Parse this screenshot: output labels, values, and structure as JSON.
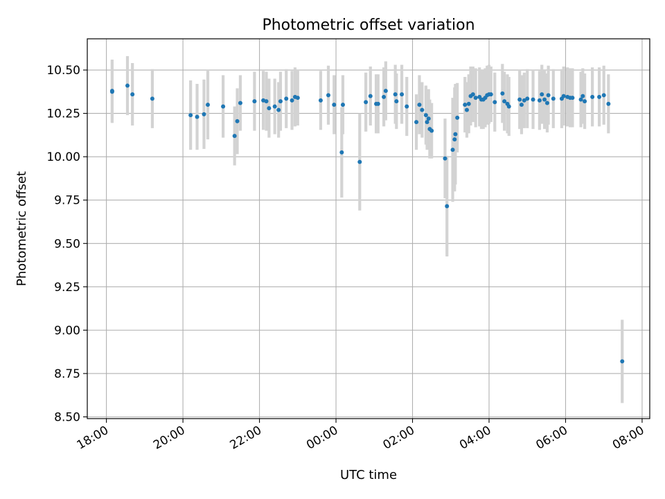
{
  "chart_data": {
    "type": "scatter",
    "title": "Photometric offset variation",
    "xlabel": "UTC time",
    "ylabel": "Photometric offset",
    "xlim_hours": [
      17.5,
      32.2
    ],
    "ylim": [
      8.49,
      10.68
    ],
    "x_ticks": [
      {
        "hour": 18,
        "label": "18:00"
      },
      {
        "hour": 20,
        "label": "20:00"
      },
      {
        "hour": 22,
        "label": "22:00"
      },
      {
        "hour": 24,
        "label": "00:00"
      },
      {
        "hour": 26,
        "label": "02:00"
      },
      {
        "hour": 28,
        "label": "04:00"
      },
      {
        "hour": 30,
        "label": "06:00"
      },
      {
        "hour": 32,
        "label": "08:00"
      }
    ],
    "y_ticks": [
      {
        "value": 8.5,
        "label": "8.50"
      },
      {
        "value": 8.75,
        "label": "8.75"
      },
      {
        "value": 9.0,
        "label": "9.00"
      },
      {
        "value": 9.25,
        "label": "9.25"
      },
      {
        "value": 9.5,
        "label": "9.50"
      },
      {
        "value": 9.75,
        "label": "9.75"
      },
      {
        "value": 10.0,
        "label": "10.00"
      },
      {
        "value": 10.25,
        "label": "10.25"
      },
      {
        "value": 10.5,
        "label": "10.50"
      }
    ],
    "grid": true,
    "colors": {
      "point": "#1f77b4",
      "errorbar": "#d3d3d3",
      "grid": "#b0b0b0"
    },
    "series": [
      {
        "points": [
          [
            18.15,
            10.375,
            0.18
          ],
          [
            18.15,
            10.38,
            0.18
          ],
          [
            18.55,
            10.41,
            0.17
          ],
          [
            18.68,
            10.36,
            0.18
          ],
          [
            19.2,
            10.335,
            0.17
          ],
          [
            20.2,
            10.24,
            0.2
          ],
          [
            20.37,
            10.23,
            0.19
          ],
          [
            20.55,
            10.245,
            0.2
          ],
          [
            20.65,
            10.3,
            0.2
          ],
          [
            21.05,
            10.29,
            0.18
          ],
          [
            21.35,
            10.12,
            0.17
          ],
          [
            21.42,
            10.205,
            0.19
          ],
          [
            21.5,
            10.31,
            0.16
          ],
          [
            21.87,
            10.32,
            0.17
          ],
          [
            22.1,
            10.325,
            0.17
          ],
          [
            22.18,
            10.32,
            0.17
          ],
          [
            22.25,
            10.28,
            0.17
          ],
          [
            22.4,
            10.29,
            0.16
          ],
          [
            22.5,
            10.27,
            0.16
          ],
          [
            22.55,
            10.32,
            0.17
          ],
          [
            22.7,
            10.335,
            0.17
          ],
          [
            22.85,
            10.325,
            0.17
          ],
          [
            22.93,
            10.345,
            0.17
          ],
          [
            23.0,
            10.34,
            0.16
          ],
          [
            23.6,
            10.325,
            0.17
          ],
          [
            23.8,
            10.355,
            0.17
          ],
          [
            23.95,
            10.3,
            0.17
          ],
          [
            24.15,
            10.025,
            0.26
          ],
          [
            24.18,
            10.3,
            0.17
          ],
          [
            24.62,
            9.97,
            0.28
          ],
          [
            24.78,
            10.315,
            0.17
          ],
          [
            24.9,
            10.35,
            0.17
          ],
          [
            25.05,
            10.305,
            0.17
          ],
          [
            25.1,
            10.305,
            0.17
          ],
          [
            25.25,
            10.345,
            0.17
          ],
          [
            25.3,
            10.38,
            0.17
          ],
          [
            25.55,
            10.36,
            0.17
          ],
          [
            25.58,
            10.32,
            0.16
          ],
          [
            25.72,
            10.36,
            0.17
          ],
          [
            25.85,
            10.29,
            0.17
          ],
          [
            26.1,
            10.2,
            0.16
          ],
          [
            26.18,
            10.3,
            0.17
          ],
          [
            26.25,
            10.27,
            0.16
          ],
          [
            26.35,
            10.24,
            0.17
          ],
          [
            26.38,
            10.2,
            0.16
          ],
          [
            26.42,
            10.22,
            0.17
          ],
          [
            26.45,
            10.16,
            0.17
          ],
          [
            26.5,
            10.15,
            0.16
          ],
          [
            26.85,
            9.99,
            0.23
          ],
          [
            26.9,
            9.715,
            0.29
          ],
          [
            27.05,
            10.04,
            0.3
          ],
          [
            27.1,
            10.1,
            0.3
          ],
          [
            27.12,
            10.13,
            0.29
          ],
          [
            27.17,
            10.225,
            0.2
          ],
          [
            27.37,
            10.3,
            0.16
          ],
          [
            27.42,
            10.27,
            0.16
          ],
          [
            27.47,
            10.305,
            0.17
          ],
          [
            27.52,
            10.35,
            0.17
          ],
          [
            27.58,
            10.36,
            0.16
          ],
          [
            27.65,
            10.34,
            0.17
          ],
          [
            27.75,
            10.345,
            0.17
          ],
          [
            27.8,
            10.33,
            0.17
          ],
          [
            27.85,
            10.33,
            0.17
          ],
          [
            27.9,
            10.34,
            0.17
          ],
          [
            27.95,
            10.355,
            0.17
          ],
          [
            28.0,
            10.36,
            0.17
          ],
          [
            28.05,
            10.36,
            0.16
          ],
          [
            28.15,
            10.315,
            0.17
          ],
          [
            28.35,
            10.365,
            0.17
          ],
          [
            28.4,
            10.32,
            0.17
          ],
          [
            28.48,
            10.305,
            0.17
          ],
          [
            28.52,
            10.29,
            0.17
          ],
          [
            28.8,
            10.33,
            0.17
          ],
          [
            28.85,
            10.3,
            0.17
          ],
          [
            28.92,
            10.325,
            0.16
          ],
          [
            29.0,
            10.335,
            0.17
          ],
          [
            29.15,
            10.33,
            0.17
          ],
          [
            29.32,
            10.325,
            0.17
          ],
          [
            29.38,
            10.36,
            0.17
          ],
          [
            29.45,
            10.33,
            0.17
          ],
          [
            29.52,
            10.31,
            0.17
          ],
          [
            29.55,
            10.355,
            0.17
          ],
          [
            29.68,
            10.335,
            0.17
          ],
          [
            29.9,
            10.335,
            0.17
          ],
          [
            29.95,
            10.35,
            0.17
          ],
          [
            30.05,
            10.345,
            0.17
          ],
          [
            30.12,
            10.34,
            0.17
          ],
          [
            30.18,
            10.34,
            0.17
          ],
          [
            30.4,
            10.33,
            0.16
          ],
          [
            30.45,
            10.35,
            0.16
          ],
          [
            30.5,
            10.32,
            0.16
          ],
          [
            30.7,
            10.345,
            0.17
          ],
          [
            30.88,
            10.345,
            0.17
          ],
          [
            31.0,
            10.355,
            0.17
          ],
          [
            31.12,
            10.305,
            0.17
          ],
          [
            31.48,
            8.82,
            0.24
          ]
        ]
      }
    ]
  }
}
